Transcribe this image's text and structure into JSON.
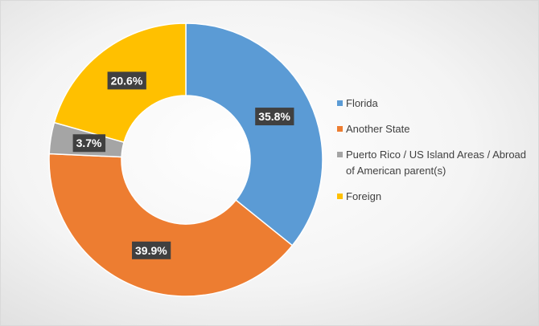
{
  "chart_data": {
    "type": "donut",
    "categories": [
      "Florida",
      "Another State",
      "Puerto Rico / US Island Areas / Abroad of American parent(s)",
      "Foreign"
    ],
    "values": [
      35.8,
      39.9,
      3.7,
      20.6
    ],
    "value_labels": [
      "35.8%",
      "39.9%",
      "3.7%",
      "20.6%"
    ],
    "colors": [
      "#5b9bd5",
      "#ed7d31",
      "#a5a5a5",
      "#ffc000"
    ],
    "legend": "right"
  }
}
